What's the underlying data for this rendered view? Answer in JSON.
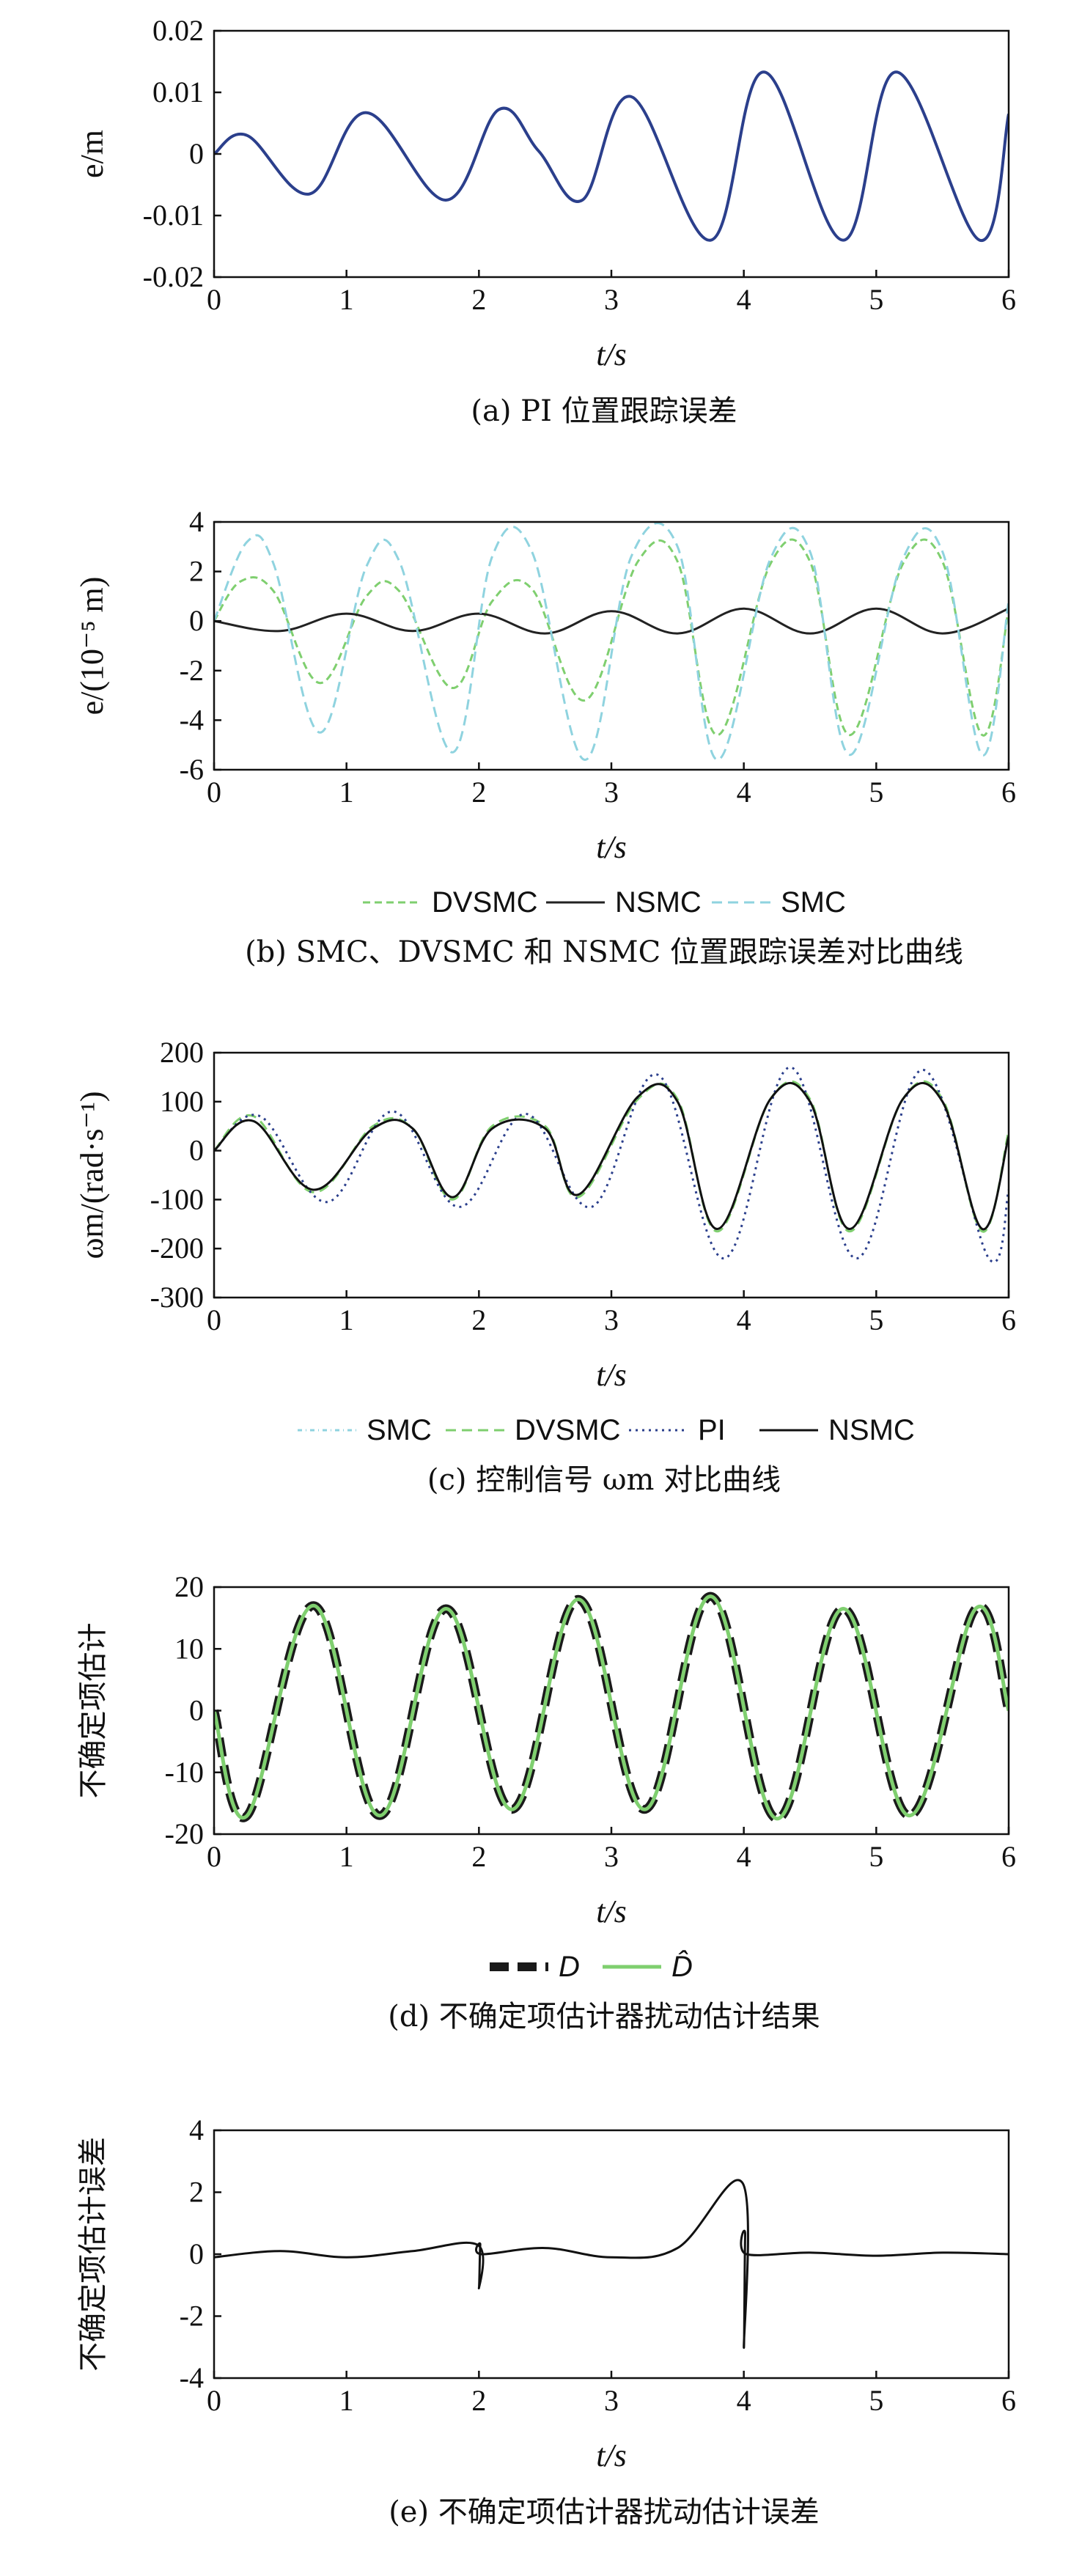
{
  "chart_data": [
    {
      "type": "line",
      "caption": "(a) PI 位置跟踪误差",
      "xlabel": "t/s",
      "ylabel": "e/m",
      "xlim": [
        0,
        6
      ],
      "ylim": [
        -0.02,
        0.02
      ],
      "xticks": [
        "0",
        "1",
        "2",
        "3",
        "4",
        "5",
        "6"
      ],
      "yticks": [
        "0.02",
        "0.01",
        "0",
        "-0.01",
        "-0.02"
      ],
      "grid": false,
      "series": [
        {
          "color": "#2b3f8c",
          "x": [
            0,
            0.25,
            0.72,
            1.15,
            1.75,
            2.15,
            2.45,
            2.78,
            3.15,
            3.75,
            4.15,
            4.75,
            5.15,
            5.78,
            6.0
          ],
          "y": [
            0,
            0.003,
            -0.0065,
            0.0067,
            -0.0075,
            0.0072,
            0.0005,
            -0.0075,
            0.0093,
            -0.014,
            0.0133,
            -0.014,
            0.0133,
            -0.014,
            0.0065
          ]
        }
      ]
    },
    {
      "type": "line",
      "caption": "(b) SMC、DVSMC 和 NSMC 位置跟踪误差对比曲线",
      "xlabel": "t/s",
      "ylabel": "e/(10⁻⁵ m)",
      "xlim": [
        0,
        6
      ],
      "ylim": [
        -6,
        4
      ],
      "xticks": [
        "0",
        "1",
        "2",
        "3",
        "4",
        "5",
        "6"
      ],
      "yticks": [
        "4",
        "2",
        "0",
        "-2",
        "-4",
        "-6"
      ],
      "grid": false,
      "legend": "bottom",
      "series": [
        {
          "name": "DVSMC",
          "color": "#7fcf6f",
          "x": [
            0,
            0.2,
            0.45,
            0.8,
            1.15,
            1.4,
            1.8,
            2.1,
            2.4,
            2.8,
            3.2,
            3.5,
            3.8,
            4.2,
            4.5,
            4.8,
            5.2,
            5.5,
            5.8,
            6.0
          ],
          "y": [
            0,
            1.6,
            1.2,
            -2.5,
            1.0,
            1.2,
            -2.7,
            0.8,
            1.3,
            -3.2,
            2.4,
            2.4,
            -4.6,
            2.3,
            2.4,
            -4.6,
            2.3,
            2.4,
            -4.6,
            0.5
          ]
        },
        {
          "name": "NSMC",
          "color": "#222222",
          "x": [
            0,
            0.5,
            1.0,
            1.5,
            2.0,
            2.5,
            3.0,
            3.5,
            4.0,
            4.5,
            5.0,
            5.5,
            6.0
          ],
          "y": [
            0,
            -0.4,
            0.3,
            -0.4,
            0.3,
            -0.5,
            0.4,
            -0.5,
            0.5,
            -0.5,
            0.5,
            -0.5,
            0.5
          ]
        },
        {
          "name": "SMC",
          "color": "#8fd3df",
          "x": [
            0,
            0.25,
            0.45,
            0.8,
            1.15,
            1.4,
            1.8,
            2.1,
            2.4,
            2.8,
            3.15,
            3.5,
            3.8,
            4.2,
            4.5,
            4.8,
            5.2,
            5.5,
            5.8,
            6.0
          ],
          "y": [
            0,
            3.2,
            2.3,
            -4.5,
            2.2,
            2.4,
            -5.3,
            2.6,
            2.8,
            -5.6,
            2.6,
            3.0,
            -5.6,
            2.5,
            2.8,
            -5.4,
            2.5,
            2.8,
            -5.4,
            0.8
          ]
        }
      ]
    },
    {
      "type": "line",
      "caption": "(c) 控制信号 ωm 对比曲线",
      "xlabel": "t/s",
      "ylabel": "ωm/(rad·s⁻¹)",
      "xlim": [
        0,
        6
      ],
      "ylim": [
        -300,
        200
      ],
      "xticks": [
        "0",
        "1",
        "2",
        "3",
        "4",
        "5",
        "6"
      ],
      "yticks": [
        "200",
        "100",
        "0",
        "-100",
        "-200",
        "-300"
      ],
      "grid": false,
      "legend": "bottom",
      "series": [
        {
          "name": "SMC",
          "color": "#8fd3df",
          "x": [
            0,
            0.3,
            0.75,
            1.2,
            1.5,
            1.8,
            2.1,
            2.5,
            2.75,
            3.2,
            3.5,
            3.8,
            4.2,
            4.5,
            4.8,
            5.2,
            5.5,
            5.8,
            6.0
          ],
          "y": [
            0,
            60,
            -80,
            45,
            45,
            -95,
            45,
            45,
            -90,
            110,
            100,
            -160,
            105,
            100,
            -160,
            105,
            100,
            -160,
            30
          ]
        },
        {
          "name": "DVSMC",
          "color": "#7fcf6f",
          "x": [
            0,
            0.3,
            0.75,
            1.2,
            1.5,
            1.8,
            2.1,
            2.5,
            2.75,
            3.2,
            3.5,
            3.8,
            4.2,
            4.5,
            4.8,
            5.2,
            5.5,
            5.8,
            6.0
          ],
          "y": [
            0,
            70,
            -85,
            50,
            45,
            -100,
            50,
            50,
            -95,
            105,
            105,
            -165,
            105,
            105,
            -165,
            105,
            105,
            -165,
            40
          ]
        },
        {
          "name": "PI",
          "color": "#2b3f8c",
          "x": [
            0,
            0.35,
            0.85,
            1.35,
            1.85,
            2.35,
            2.85,
            3.35,
            3.85,
            4.35,
            4.85,
            5.35,
            5.85,
            6.0
          ],
          "y": [
            0,
            70,
            -105,
            80,
            -115,
            75,
            -115,
            155,
            -220,
            170,
            -220,
            165,
            -220,
            -80
          ]
        },
        {
          "name": "NSMC",
          "color": "#111111",
          "x": [
            0,
            0.3,
            0.75,
            1.2,
            1.5,
            1.8,
            2.1,
            2.5,
            2.75,
            3.2,
            3.5,
            3.8,
            4.2,
            4.5,
            4.8,
            5.2,
            5.5,
            5.8,
            6.0
          ],
          "y": [
            0,
            60,
            -80,
            45,
            45,
            -95,
            45,
            45,
            -90,
            110,
            100,
            -160,
            105,
            100,
            -160,
            105,
            100,
            -160,
            30
          ]
        }
      ]
    },
    {
      "type": "line",
      "caption": "(d) 不确定项估计器扰动估计结果",
      "xlabel": "t/s",
      "ylabel": "不确定项估计",
      "xlim": [
        0,
        6
      ],
      "ylim": [
        -20,
        20
      ],
      "xticks": [
        "0",
        "1",
        "2",
        "3",
        "4",
        "5",
        "6"
      ],
      "yticks": [
        "20",
        "10",
        "0",
        "-10",
        "-20"
      ],
      "grid": false,
      "legend": "bottom",
      "series": [
        {
          "name": "D",
          "color": "#1a1a1a",
          "x": [
            0,
            0.25,
            0.75,
            1.25,
            1.75,
            2.25,
            2.75,
            3.25,
            3.75,
            4.25,
            4.75,
            5.25,
            5.75,
            6.0
          ],
          "y": [
            0,
            -17,
            17,
            -17,
            16.5,
            -16,
            18,
            -16,
            18.5,
            -17.5,
            16.5,
            -17,
            16.5,
            0
          ]
        },
        {
          "name": "D̂",
          "color": "#7fcf6f",
          "x": [
            0,
            0.25,
            0.75,
            1.25,
            1.75,
            2.25,
            2.75,
            3.25,
            3.75,
            4.25,
            4.75,
            5.25,
            5.75,
            6.0
          ],
          "y": [
            0,
            -17,
            17,
            -17,
            16.5,
            -16,
            18,
            -16,
            18.5,
            -17.5,
            16.5,
            -17,
            16.5,
            0
          ]
        }
      ]
    },
    {
      "type": "line",
      "caption": "(e) 不确定项估计器扰动估计误差",
      "xlabel": "t/s",
      "ylabel": "不确定项估计误差",
      "xlim": [
        0,
        6
      ],
      "ylim": [
        -4,
        4
      ],
      "xticks": [
        "0",
        "1",
        "2",
        "3",
        "4",
        "5",
        "6"
      ],
      "yticks": [
        "4",
        "2",
        "0",
        "-2",
        "-4"
      ],
      "grid": false,
      "series": [
        {
          "color": "#111111",
          "x": [
            0,
            0.5,
            1.0,
            1.5,
            1.99,
            2.0,
            2.01,
            2.02,
            2.5,
            3.0,
            3.5,
            3.99,
            4.0,
            4.01,
            4.02,
            4.5,
            5.0,
            5.5,
            6.0
          ],
          "y": [
            -0.1,
            0.1,
            -0.1,
            0.1,
            0.3,
            -1.1,
            0.3,
            0,
            0.2,
            -0.1,
            0.2,
            2.3,
            -3.0,
            0.6,
            0,
            0.05,
            -0.05,
            0.05,
            0
          ]
        }
      ]
    }
  ]
}
